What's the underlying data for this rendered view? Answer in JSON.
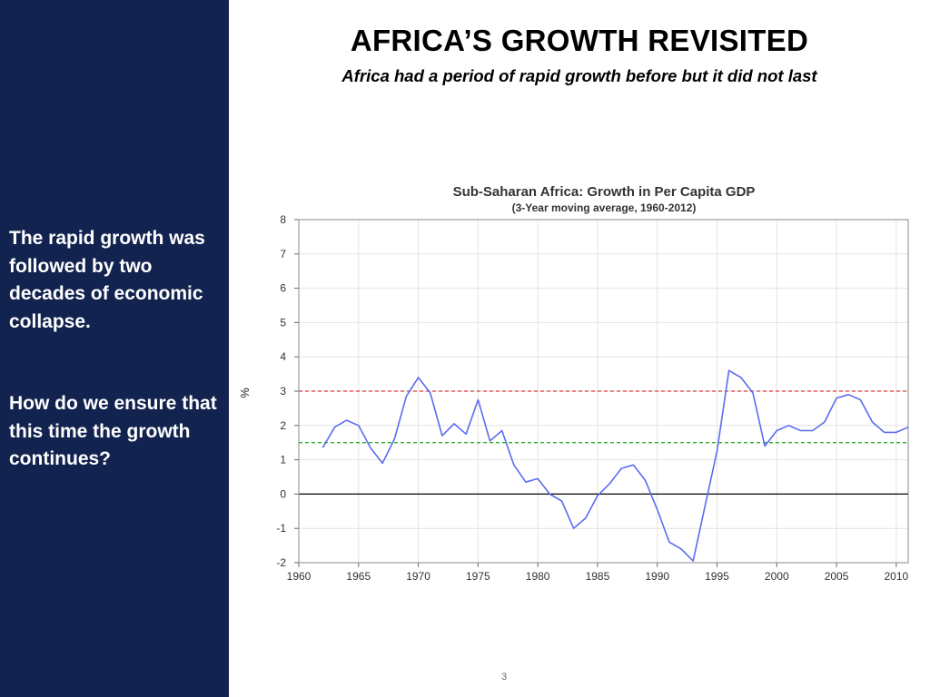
{
  "slide": {
    "title": "AFRICA’S GROWTH REVISITED",
    "subtitle": "Africa had a period of rapid growth before but it did not last",
    "page_number": "3"
  },
  "sidebar": {
    "text_1": "The rapid growth was followed by two decades of economic collapse.",
    "text_2": "How do we ensure that this time the growth continues?"
  },
  "colors": {
    "sidebar_bg": "#13234f",
    "series_line": "#5b6cf0",
    "red_reference": "#e03a3a",
    "green_reference": "#2eae2e",
    "zero_line": "#000000"
  },
  "chart_data": {
    "type": "line",
    "title": "Sub-Saharan Africa: Growth in Per Capita GDP",
    "subtitle": "(3-Year moving average, 1960-2012)",
    "xlabel": "",
    "ylabel": "%",
    "xlim": [
      1960,
      2011
    ],
    "ylim": [
      -2,
      8
    ],
    "xticks": [
      1960,
      1965,
      1970,
      1975,
      1980,
      1985,
      1990,
      1995,
      2000,
      2005,
      2010
    ],
    "yticks": [
      -2,
      -1,
      0,
      1,
      2,
      3,
      4,
      5,
      6,
      7,
      8
    ],
    "grid": true,
    "series": [
      {
        "x": [
          1962,
          1963,
          1964,
          1965,
          1966,
          1967,
          1968,
          1969,
          1970,
          1971,
          1972,
          1973,
          1974,
          1975,
          1976,
          1977,
          1978,
          1979,
          1980,
          1981,
          1982,
          1983,
          1984,
          1985,
          1986,
          1987,
          1988,
          1989,
          1990,
          1991,
          1992,
          1993,
          1994,
          1995,
          1996,
          1997,
          1998,
          1999,
          2000,
          2001,
          2002,
          2003,
          2004,
          2005,
          2006,
          2007,
          2008,
          2009,
          2010,
          2011
        ],
        "y": [
          1.35,
          1.95,
          2.15,
          2.0,
          1.35,
          0.9,
          1.6,
          2.85,
          3.4,
          2.95,
          1.7,
          2.05,
          1.75,
          2.75,
          1.55,
          1.85,
          0.85,
          0.35,
          0.45,
          0.0,
          -0.2,
          -1.0,
          -0.7,
          -0.05,
          0.3,
          0.75,
          0.85,
          0.4,
          -0.45,
          -1.4,
          -1.6,
          -1.95,
          -0.35,
          1.25,
          3.6,
          3.4,
          2.95,
          1.4,
          1.85,
          2.0,
          1.85,
          1.85,
          2.1,
          2.8,
          2.9,
          2.75,
          2.1,
          1.8,
          1.8,
          1.95
        ]
      }
    ],
    "reference_lines": [
      {
        "y": 3.0,
        "style": "dashed",
        "color": "red"
      },
      {
        "y": 1.5,
        "style": "dashed",
        "color": "green"
      },
      {
        "y": 0,
        "style": "solid",
        "color": "black"
      }
    ]
  }
}
